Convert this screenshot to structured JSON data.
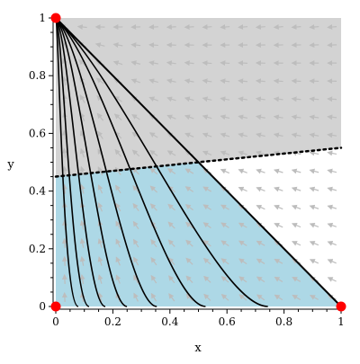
{
  "chart_data": {
    "type": "line",
    "title": "",
    "xlabel": "x",
    "ylabel": "y",
    "xlim": [
      0,
      1
    ],
    "ylim": [
      0,
      1
    ],
    "x_ticks": [
      "0",
      "0.2",
      "0.4",
      "0.6",
      "0.8",
      "1"
    ],
    "y_ticks": [
      "0",
      "0.2",
      "0.4",
      "0.6",
      "0.8",
      "1"
    ],
    "grid": false,
    "legend": "none",
    "vector_field": "arrows",
    "regions": [
      {
        "name": "upper-region",
        "color": "#d3d3d3",
        "vertices": [
          [
            0,
            0.45
          ],
          [
            0.5,
            0.5
          ],
          [
            1,
            0.55
          ],
          [
            1,
            1
          ],
          [
            0,
            1
          ]
        ]
      },
      {
        "name": "lower-region",
        "color": "#add8e6",
        "vertices": [
          [
            0,
            0
          ],
          [
            1,
            0
          ],
          [
            0.5,
            0.5
          ],
          [
            0,
            0.45
          ]
        ]
      }
    ],
    "boundary_line": {
      "style": "dotted",
      "color": "#000000",
      "x": [
        0,
        1
      ],
      "y": [
        0.45,
        0.55
      ]
    },
    "simplex_edge": {
      "color": "#000000",
      "x": [
        0,
        1
      ],
      "y": [
        1,
        0
      ]
    },
    "trajectories": [
      {
        "ends_at_x": 0.03
      },
      {
        "ends_at_x": 0.07
      },
      {
        "ends_at_x": 0.13
      },
      {
        "ends_at_x": 0.21
      },
      {
        "ends_at_x": 0.32
      },
      {
        "ends_at_x": 0.5
      },
      {
        "ends_at_x": 0.73
      }
    ],
    "equilibria": [
      {
        "x": 0,
        "y": 1
      },
      {
        "x": 0,
        "y": 0
      },
      {
        "x": 1,
        "y": 0
      }
    ],
    "colors": {
      "arrows": "#bdbdbd",
      "curves": "#000000",
      "points": "#ff0000"
    }
  }
}
